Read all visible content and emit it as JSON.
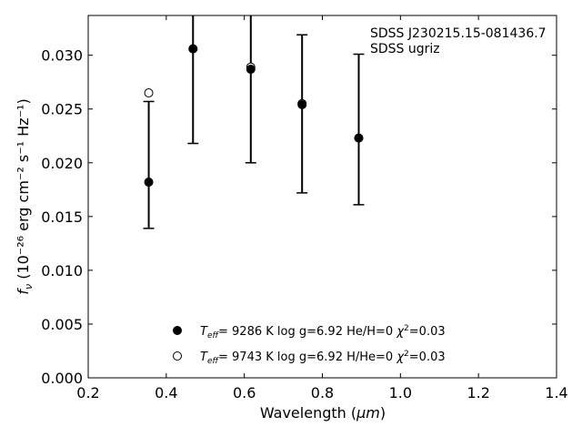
{
  "chart_data": {
    "type": "scatter",
    "xlabel_prefix": "Wavelength (",
    "xlabel_unit": "μm",
    "xlabel_suffix": ")",
    "ylabel_prefix": "f",
    "ylabel_sub": "ν",
    "ylabel_text": "(10⁻²⁶ erg cm⁻² s⁻¹ Hz⁻¹)",
    "xlim": [
      0.2,
      1.4
    ],
    "ylim": [
      0.0,
      0.0337
    ],
    "x_ticks": [
      0.2,
      0.4,
      0.6,
      0.8,
      1.0,
      1.2,
      1.4
    ],
    "x_tick_labels": [
      "0.2",
      "0.4",
      "0.6",
      "0.8",
      "1.0",
      "1.2",
      "1.4"
    ],
    "y_ticks": [
      0.0,
      0.005,
      0.01,
      0.015,
      0.02,
      0.025,
      0.03
    ],
    "y_tick_labels": [
      "0.000",
      "0.005",
      "0.010",
      "0.015",
      "0.020",
      "0.025",
      "0.030"
    ],
    "grid": false,
    "annotations": [
      "SDSS J230215.15-081436.7",
      "SDSS ugriz"
    ],
    "observed": {
      "x": [
        0.3551,
        0.4686,
        0.6166,
        0.748,
        0.8932
      ],
      "y": [
        0.0182,
        0.0307,
        0.0287,
        0.0253,
        0.0222
      ],
      "yerr_low": [
        0.0139,
        0.0218,
        0.02,
        0.0172,
        0.0161
      ],
      "yerr_high": [
        0.0257,
        0.034,
        0.034,
        0.0319,
        0.0301
      ]
    },
    "series": [
      {
        "name": "T_eff= 9286 K log g=6.92 He/H=0 χ²=0.03",
        "legend_parts": {
          "teff": "9286 K",
          "logg": "log g=6.92",
          "comp": "He/H=0",
          "chi": "=0.03"
        },
        "marker": "filled-circle",
        "x": [
          0.3551,
          0.4686,
          0.6166,
          0.748,
          0.8932
        ],
        "y": [
          0.0182,
          0.0306,
          0.0287,
          0.0254,
          0.0223
        ]
      },
      {
        "name": "T_eff= 9743 K log g=6.92 H/He=0 χ²=0.03",
        "legend_parts": {
          "teff": "9743 K",
          "logg": "log g=6.92",
          "comp": "H/He=0",
          "chi": "=0.03"
        },
        "marker": "open-circle",
        "x": [
          0.3551,
          0.4686,
          0.6166,
          0.748,
          0.8932
        ],
        "y": [
          0.0265,
          0.0306,
          0.0289,
          0.0255,
          0.0223
        ]
      }
    ],
    "colors": {
      "axes": "#000000",
      "markers": "#000000",
      "background": "#ffffff"
    }
  }
}
